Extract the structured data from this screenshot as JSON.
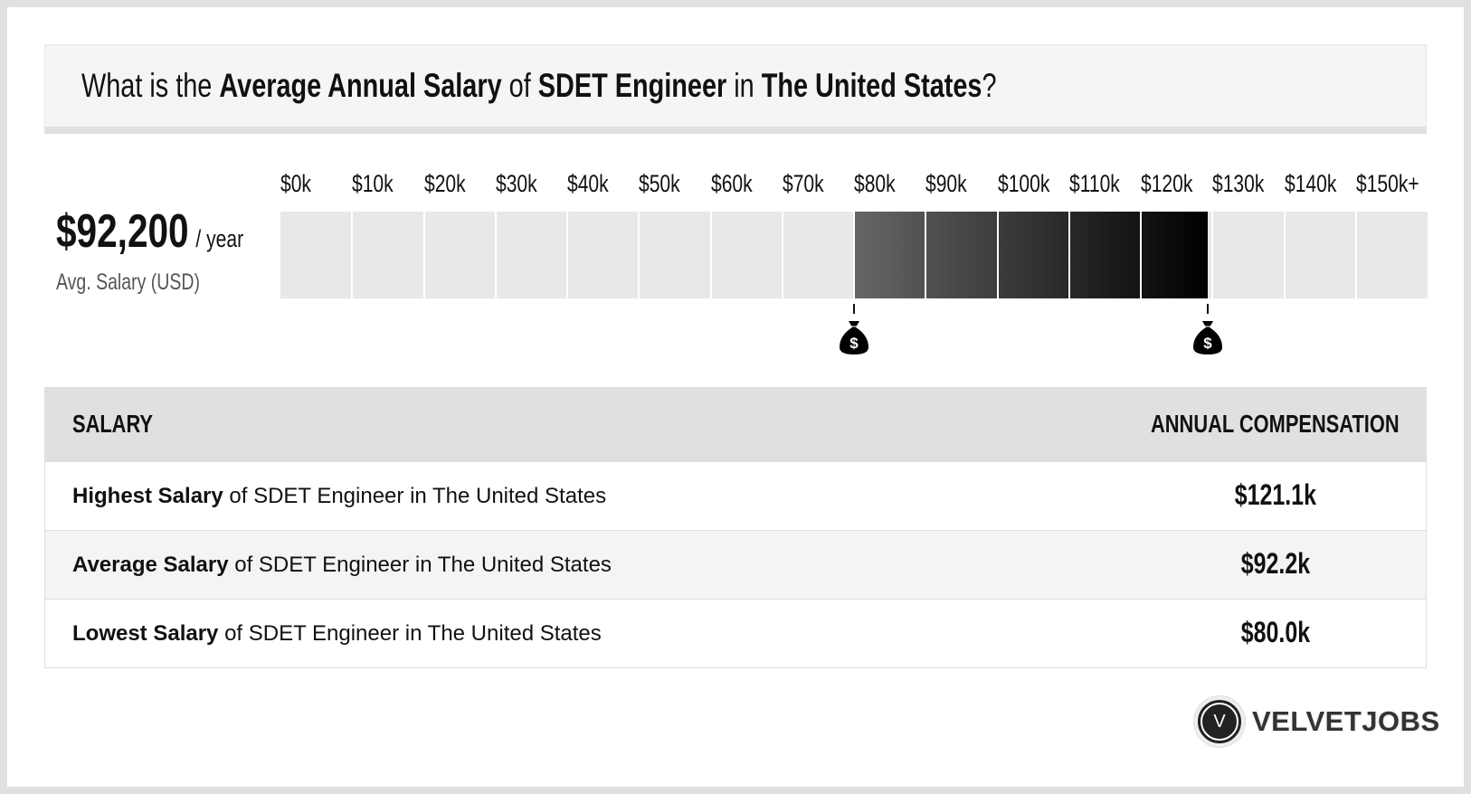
{
  "title": {
    "p1": "What is the ",
    "b1": "Average Annual Salary",
    "p2": " of ",
    "b2": "SDET Engineer",
    "p3": " in ",
    "b3": "The United States",
    "p4": "?"
  },
  "summary": {
    "value": "$92,200",
    "unit": "/ year",
    "label": "Avg. Salary (USD)"
  },
  "chart_data": {
    "type": "bar",
    "categories": [
      "$0k",
      "$10k",
      "$20k",
      "$30k",
      "$40k",
      "$50k",
      "$60k",
      "$70k",
      "$80k",
      "$90k",
      "$100k",
      "$110k",
      "$120k",
      "$130k",
      "$140k",
      "$150k+"
    ],
    "range_low": 80.0,
    "range_high": 121.1,
    "average": 92.2,
    "unit": "k USD",
    "fill_colors": [
      "#666666",
      "#000000"
    ],
    "marker_icon": "money-bag-icon"
  },
  "table": {
    "headers": [
      "SALARY",
      "ANNUAL COMPENSATION"
    ],
    "rows": [
      {
        "bold": "Highest Salary",
        "rest": " of SDET Engineer in The United States",
        "value": "$121.1k"
      },
      {
        "bold": "Average Salary",
        "rest": " of SDET Engineer in The United States",
        "value": "$92.2k"
      },
      {
        "bold": "Lowest Salary",
        "rest": " of SDET Engineer in The United States",
        "value": "$80.0k"
      }
    ]
  },
  "logo": {
    "mark": "V",
    "text": "VELVETJOBS"
  }
}
